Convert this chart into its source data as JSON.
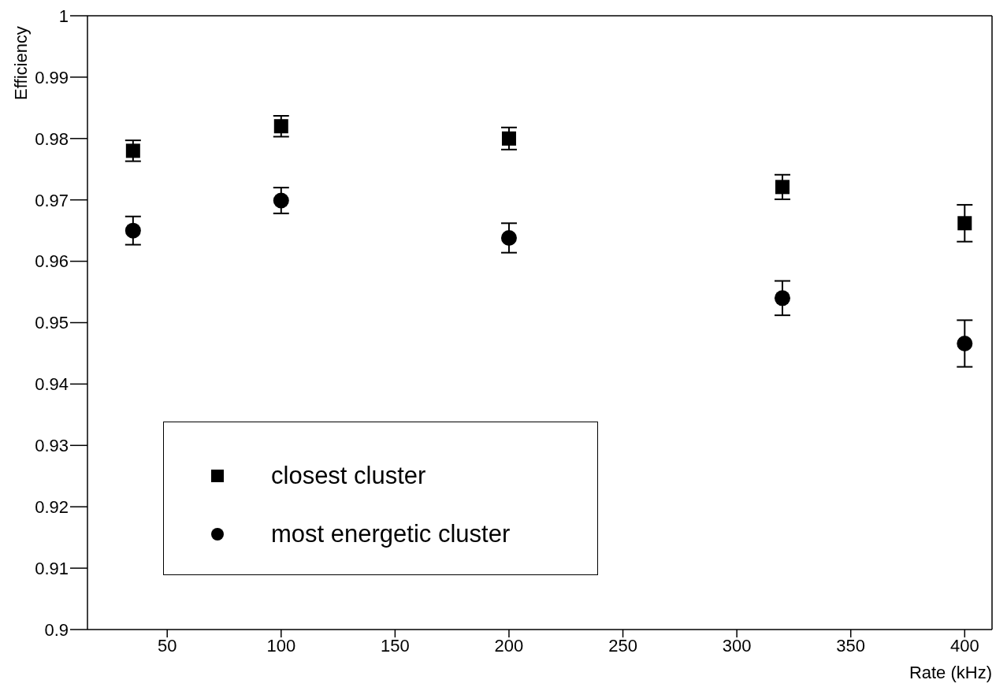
{
  "chart_data": {
    "type": "scatter",
    "xlabel": "Rate (kHz)",
    "ylabel": "Efficiency",
    "x": [
      35,
      100,
      200,
      320,
      400
    ],
    "series": [
      {
        "name": "closest cluster",
        "color": "#000000",
        "marker": "square",
        "values": [
          0.978,
          0.982,
          0.98,
          0.9721,
          0.9662
        ],
        "errors": [
          0.0017,
          0.0017,
          0.0018,
          0.002,
          0.003
        ]
      },
      {
        "name": "most energetic cluster",
        "color": "#000000",
        "marker": "circle",
        "values": [
          0.965,
          0.9699,
          0.9638,
          0.954,
          0.9466
        ],
        "errors": [
          0.0023,
          0.0021,
          0.0024,
          0.0028,
          0.0038
        ]
      }
    ],
    "xlim": [
      15,
      412
    ],
    "xticks": [
      50,
      100,
      150,
      200,
      250,
      300,
      350,
      400
    ],
    "ylim": [
      0.9,
      1
    ],
    "yticks": [
      0.9,
      0.91,
      0.92,
      0.93,
      0.94,
      0.95,
      0.96,
      0.97,
      0.98,
      0.99,
      1
    ],
    "grid": false,
    "legend": "bottom left"
  }
}
